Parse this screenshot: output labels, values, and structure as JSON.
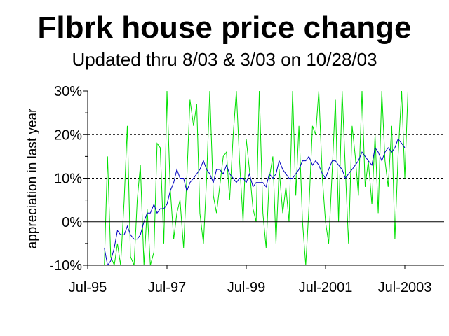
{
  "chart_data": {
    "type": "line",
    "title": "Flbrk house price change",
    "subtitle": "Updated thru 8/03 & 3/03 on 10/28/03",
    "xlabel": "",
    "ylabel": "appreciation in last year",
    "ylim": [
      -10,
      30
    ],
    "yticks": [
      -10,
      0,
      10,
      20,
      30
    ],
    "ytick_labels": [
      "-10%",
      "0%",
      "10%",
      "20%",
      "30%"
    ],
    "x_range": [
      1995.5,
      2003.8
    ],
    "xticks": [
      1995.5,
      1997.5,
      1999.5,
      2001.5,
      2003.5
    ],
    "xtick_labels": [
      "Jul-95",
      "Jul-97",
      "Jul-99",
      "Jul-2001",
      "Jul-2003"
    ],
    "gridlines": [
      10,
      20
    ],
    "grid": "dashed horizontal",
    "legend": "none",
    "series": [
      {
        "color": "#00e000",
        "x": [
          1995.92,
          1996.0,
          1996.08,
          1996.17,
          1996.25,
          1996.33,
          1996.42,
          1996.5,
          1996.58,
          1996.67,
          1996.75,
          1996.83,
          1996.92,
          1997.0,
          1997.08,
          1997.17,
          1997.25,
          1997.33,
          1997.42,
          1997.5,
          1997.58,
          1997.67,
          1997.75,
          1997.83,
          1997.92,
          1998.0,
          1998.08,
          1998.17,
          1998.25,
          1998.33,
          1998.42,
          1998.5,
          1998.58,
          1998.67,
          1998.75,
          1998.83,
          1998.92,
          1999.0,
          1999.08,
          1999.17,
          1999.25,
          1999.33,
          1999.42,
          1999.5,
          1999.58,
          1999.67,
          1999.75,
          1999.83,
          1999.92,
          2000.0,
          2000.08,
          2000.17,
          2000.25,
          2000.33,
          2000.42,
          2000.5,
          2000.58,
          2000.67,
          2000.75,
          2000.83,
          2000.92,
          2001.0,
          2001.08,
          2001.17,
          2001.25,
          2001.33,
          2001.42,
          2001.5,
          2001.58,
          2001.67,
          2001.75,
          2001.83,
          2001.92,
          2002.0,
          2002.08,
          2002.17,
          2002.25,
          2002.33,
          2002.42,
          2002.5,
          2002.58,
          2002.67,
          2002.75,
          2002.83,
          2002.92,
          2003.0,
          2003.08,
          2003.17,
          2003.25,
          2003.33,
          2003.42,
          2003.5,
          2003.58
        ],
        "values": [
          -10,
          15,
          -8,
          -10,
          -5,
          -10,
          5,
          22,
          -8,
          -10,
          5,
          13,
          -10,
          3,
          -10,
          -7,
          18,
          17,
          -5,
          30,
          8,
          -4,
          2,
          5,
          -6,
          10,
          28,
          22,
          27,
          2,
          -5,
          10,
          30,
          6,
          2,
          8,
          15,
          16,
          5,
          20,
          30,
          14,
          0,
          19,
          12,
          3,
          0,
          30,
          2,
          -6,
          10,
          15,
          -5,
          12,
          2,
          8,
          0,
          30,
          6,
          22,
          0,
          -10,
          3,
          22,
          20,
          30,
          10,
          0,
          -5,
          12,
          28,
          0,
          30,
          12,
          -5,
          22,
          15,
          6,
          30,
          8,
          14,
          4,
          20,
          2,
          30,
          14,
          8,
          22,
          -4,
          15,
          30,
          10,
          30
        ]
      },
      {
        "color": "#0000c0",
        "x": [
          1995.92,
          1996.0,
          1996.08,
          1996.17,
          1996.25,
          1996.33,
          1996.42,
          1996.5,
          1996.58,
          1996.67,
          1996.75,
          1996.83,
          1996.92,
          1997.0,
          1997.08,
          1997.17,
          1997.25,
          1997.33,
          1997.42,
          1997.5,
          1997.58,
          1997.67,
          1997.75,
          1997.83,
          1997.92,
          1998.0,
          1998.08,
          1998.17,
          1998.25,
          1998.33,
          1998.42,
          1998.5,
          1998.58,
          1998.67,
          1998.75,
          1998.83,
          1998.92,
          1999.0,
          1999.08,
          1999.17,
          1999.25,
          1999.33,
          1999.42,
          1999.5,
          1999.58,
          1999.67,
          1999.75,
          1999.83,
          1999.92,
          2000.0,
          2000.08,
          2000.17,
          2000.25,
          2000.33,
          2000.42,
          2000.5,
          2000.58,
          2000.67,
          2000.75,
          2000.83,
          2000.92,
          2001.0,
          2001.08,
          2001.17,
          2001.25,
          2001.33,
          2001.42,
          2001.5,
          2001.58,
          2001.67,
          2001.75,
          2001.83,
          2001.92,
          2002.0,
          2002.08,
          2002.17,
          2002.25,
          2002.33,
          2002.42,
          2002.5,
          2002.58,
          2002.67,
          2002.75,
          2002.83,
          2002.92,
          2003.0,
          2003.08,
          2003.17,
          2003.25,
          2003.33,
          2003.42,
          2003.5
        ],
        "values": [
          -6,
          -10,
          -9,
          -6,
          -2,
          -3,
          -3,
          -1,
          -3,
          -4,
          -4,
          -3,
          0,
          2,
          2,
          4,
          2,
          3,
          3,
          4,
          7,
          9,
          12,
          10,
          10,
          7,
          9,
          10,
          11,
          12,
          14,
          12,
          11,
          9,
          12,
          12,
          11,
          13,
          11,
          10,
          9,
          10,
          10,
          9,
          11,
          8,
          9,
          9,
          9,
          8,
          11,
          10,
          11,
          14,
          12,
          11,
          10,
          10,
          11,
          12,
          14,
          14,
          15,
          13,
          14,
          13,
          11,
          10,
          12,
          14,
          14,
          13,
          12,
          10,
          11,
          12,
          13,
          14,
          16,
          15,
          14,
          13,
          17,
          16,
          14,
          16,
          17,
          16,
          17,
          19,
          18,
          17
        ]
      }
    ]
  }
}
